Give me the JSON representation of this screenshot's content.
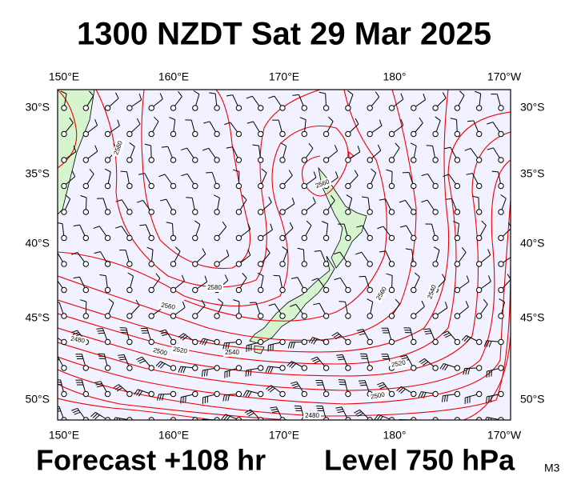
{
  "header": {
    "title": "1300 NZDT Sat 29 Mar 2025"
  },
  "map": {
    "lon_labels": [
      "150°E",
      "160°E",
      "170°E",
      "180°",
      "170°W"
    ],
    "lat_labels": [
      "30°S",
      "35°S",
      "40°S",
      "45°S",
      "50°S"
    ],
    "contour_labels": [
      "2580",
      "2560",
      "2580",
      "2560",
      "2480",
      "2520",
      "2500",
      "2540",
      "2560",
      "2540",
      "2520",
      "2500",
      "2480"
    ]
  },
  "footer": {
    "forecast": "Forecast +108 hr",
    "level": "Level 750 hPa",
    "model": "M3"
  }
}
